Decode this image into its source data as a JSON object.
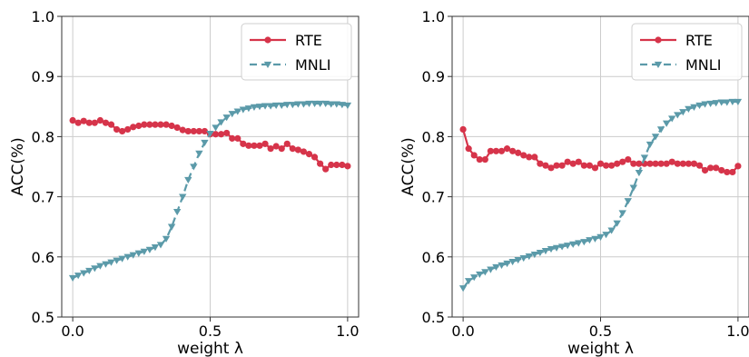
{
  "colors": {
    "rte": "#d6344a",
    "mnli": "#5b9aa9",
    "grid": "#cccccc",
    "axis": "#333333"
  },
  "chart_data": [
    {
      "type": "line",
      "xlabel": "weight λ",
      "ylabel": "ACC(%)",
      "xlim": [
        -0.04,
        1.04
      ],
      "ylim": [
        0.5,
        1.0
      ],
      "xticks": [
        "0.0",
        "0.5",
        "1.0"
      ],
      "yticks": [
        "0.5",
        "0.6",
        "0.7",
        "0.8",
        "0.9",
        "1.0"
      ],
      "grid": true,
      "legend": "top-right",
      "series": [
        {
          "name": "RTE",
          "marker": "circle",
          "linestyle": "solid",
          "x": [
            0.0,
            0.02,
            0.04,
            0.06,
            0.08,
            0.1,
            0.12,
            0.14,
            0.16,
            0.18,
            0.2,
            0.22,
            0.24,
            0.26,
            0.28,
            0.3,
            0.32,
            0.34,
            0.36,
            0.38,
            0.4,
            0.42,
            0.44,
            0.46,
            0.48,
            0.5,
            0.52,
            0.54,
            0.56,
            0.58,
            0.6,
            0.62,
            0.64,
            0.66,
            0.68,
            0.7,
            0.72,
            0.74,
            0.76,
            0.78,
            0.8,
            0.82,
            0.84,
            0.86,
            0.88,
            0.9,
            0.92,
            0.94,
            0.96,
            0.98,
            1.0
          ],
          "y": [
            0.827,
            0.823,
            0.826,
            0.823,
            0.823,
            0.827,
            0.823,
            0.82,
            0.812,
            0.809,
            0.812,
            0.816,
            0.818,
            0.82,
            0.82,
            0.82,
            0.82,
            0.82,
            0.818,
            0.815,
            0.811,
            0.809,
            0.809,
            0.809,
            0.809,
            0.804,
            0.804,
            0.804,
            0.806,
            0.797,
            0.797,
            0.788,
            0.785,
            0.785,
            0.785,
            0.788,
            0.78,
            0.784,
            0.78,
            0.788,
            0.78,
            0.778,
            0.775,
            0.771,
            0.766,
            0.755,
            0.746,
            0.753,
            0.753,
            0.753,
            0.751
          ]
        },
        {
          "name": "MNLI",
          "marker": "triangle-down",
          "linestyle": "dashed",
          "x": [
            0.0,
            0.02,
            0.04,
            0.06,
            0.08,
            0.1,
            0.12,
            0.14,
            0.16,
            0.18,
            0.2,
            0.22,
            0.24,
            0.26,
            0.28,
            0.3,
            0.32,
            0.34,
            0.36,
            0.38,
            0.4,
            0.42,
            0.44,
            0.46,
            0.48,
            0.5,
            0.52,
            0.54,
            0.56,
            0.58,
            0.6,
            0.62,
            0.64,
            0.66,
            0.68,
            0.7,
            0.72,
            0.74,
            0.76,
            0.78,
            0.8,
            0.82,
            0.84,
            0.86,
            0.88,
            0.9,
            0.92,
            0.94,
            0.96,
            0.98,
            1.0
          ],
          "y": [
            0.565,
            0.569,
            0.573,
            0.577,
            0.581,
            0.585,
            0.588,
            0.591,
            0.594,
            0.597,
            0.6,
            0.603,
            0.606,
            0.609,
            0.612,
            0.616,
            0.62,
            0.63,
            0.65,
            0.675,
            0.7,
            0.728,
            0.75,
            0.772,
            0.79,
            0.805,
            0.815,
            0.824,
            0.832,
            0.838,
            0.842,
            0.845,
            0.847,
            0.849,
            0.85,
            0.851,
            0.851,
            0.852,
            0.852,
            0.853,
            0.853,
            0.854,
            0.854,
            0.855,
            0.855,
            0.855,
            0.855,
            0.854,
            0.854,
            0.853,
            0.852
          ]
        }
      ]
    },
    {
      "type": "line",
      "xlabel": "weight λ",
      "ylabel": "ACC(%)",
      "xlim": [
        -0.04,
        1.04
      ],
      "ylim": [
        0.5,
        1.0
      ],
      "xticks": [
        "0.0",
        "0.5",
        "1.0"
      ],
      "yticks": [
        "0.5",
        "0.6",
        "0.7",
        "0.8",
        "0.9",
        "1.0"
      ],
      "grid": true,
      "legend": "top-right",
      "series": [
        {
          "name": "RTE",
          "marker": "circle",
          "linestyle": "solid",
          "x": [
            0.0,
            0.02,
            0.04,
            0.06,
            0.08,
            0.1,
            0.12,
            0.14,
            0.16,
            0.18,
            0.2,
            0.22,
            0.24,
            0.26,
            0.28,
            0.3,
            0.32,
            0.34,
            0.36,
            0.38,
            0.4,
            0.42,
            0.44,
            0.46,
            0.48,
            0.5,
            0.52,
            0.54,
            0.56,
            0.58,
            0.6,
            0.62,
            0.64,
            0.66,
            0.68,
            0.7,
            0.72,
            0.74,
            0.76,
            0.78,
            0.8,
            0.82,
            0.84,
            0.86,
            0.88,
            0.9,
            0.92,
            0.94,
            0.96,
            0.98,
            1.0
          ],
          "y": [
            0.812,
            0.78,
            0.769,
            0.762,
            0.762,
            0.776,
            0.776,
            0.776,
            0.78,
            0.776,
            0.773,
            0.769,
            0.766,
            0.766,
            0.755,
            0.752,
            0.748,
            0.752,
            0.752,
            0.758,
            0.755,
            0.758,
            0.752,
            0.752,
            0.748,
            0.755,
            0.752,
            0.752,
            0.755,
            0.758,
            0.762,
            0.755,
            0.755,
            0.755,
            0.755,
            0.755,
            0.755,
            0.755,
            0.758,
            0.755,
            0.755,
            0.755,
            0.755,
            0.752,
            0.744,
            0.748,
            0.748,
            0.744,
            0.741,
            0.741,
            0.751
          ]
        },
        {
          "name": "MNLI",
          "marker": "triangle-down",
          "linestyle": "dashed",
          "x": [
            0.0,
            0.02,
            0.04,
            0.06,
            0.08,
            0.1,
            0.12,
            0.14,
            0.16,
            0.18,
            0.2,
            0.22,
            0.24,
            0.26,
            0.28,
            0.3,
            0.32,
            0.34,
            0.36,
            0.38,
            0.4,
            0.42,
            0.44,
            0.46,
            0.48,
            0.5,
            0.52,
            0.54,
            0.56,
            0.58,
            0.6,
            0.62,
            0.64,
            0.66,
            0.68,
            0.7,
            0.72,
            0.74,
            0.76,
            0.78,
            0.8,
            0.82,
            0.84,
            0.86,
            0.88,
            0.9,
            0.92,
            0.94,
            0.96,
            0.98,
            1.0
          ],
          "y": [
            0.548,
            0.56,
            0.566,
            0.571,
            0.575,
            0.579,
            0.583,
            0.586,
            0.589,
            0.592,
            0.595,
            0.598,
            0.601,
            0.604,
            0.607,
            0.61,
            0.613,
            0.615,
            0.617,
            0.619,
            0.621,
            0.623,
            0.625,
            0.628,
            0.63,
            0.633,
            0.637,
            0.644,
            0.656,
            0.673,
            0.693,
            0.715,
            0.74,
            0.765,
            0.787,
            0.8,
            0.812,
            0.822,
            0.83,
            0.836,
            0.841,
            0.846,
            0.849,
            0.852,
            0.854,
            0.855,
            0.856,
            0.857,
            0.857,
            0.858,
            0.858
          ]
        }
      ]
    }
  ]
}
